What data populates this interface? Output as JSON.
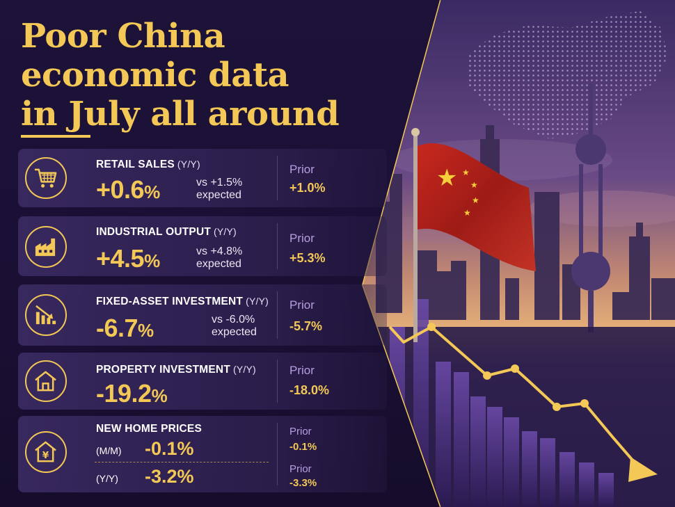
{
  "title": {
    "line1": "Poor China",
    "line2": "economic data",
    "line3": "in July all around"
  },
  "colors": {
    "accent": "#f3c856",
    "background": "#1a0f33",
    "prior_label": "#b69ee0"
  },
  "cards": {
    "retail": {
      "icon": "shopping-cart-icon",
      "label": "RETAIL SALES",
      "qualifier": "(Y/Y)",
      "value": "+0.6",
      "pct": "%",
      "vs_line1": "vs +1.5%",
      "vs_line2": "expected",
      "prior_label": "Prior",
      "prior_value": "+1.0%"
    },
    "industrial": {
      "icon": "factory-icon",
      "label": "INDUSTRIAL OUTPUT",
      "qualifier": "(Y/Y)",
      "value": "+4.5",
      "pct": "%",
      "vs_line1": "vs +4.8%",
      "vs_line2": "expected",
      "prior_label": "Prior",
      "prior_value": "+5.3%"
    },
    "fixed_asset": {
      "icon": "declining-bar-chart-icon",
      "label": "FIXED-ASSET INVESTMENT",
      "qualifier": "(Y/Y)",
      "value": "-6.7",
      "pct": "%",
      "vs_line1": "vs -6.0%",
      "vs_line2": "expected",
      "prior_label": "Prior",
      "prior_value": "-5.7%"
    },
    "property": {
      "icon": "house-icon",
      "label": "PROPERTY INVESTMENT",
      "qualifier": "(Y/Y)",
      "value": "-19.2",
      "pct": "%",
      "prior_label": "Prior",
      "prior_value": "-18.0%"
    },
    "home_prices": {
      "icon": "house-yen-icon",
      "label": "NEW HOME PRICES",
      "mm_label": "(M/M)",
      "mm_value": "-0.1%",
      "yy_label": "(Y/Y)",
      "yy_value": "-3.2%",
      "prior_label_1": "Prior",
      "prior_value_1": "-0.1%",
      "prior_label_2": "Prior",
      "prior_value_2": "-3.3%"
    }
  }
}
